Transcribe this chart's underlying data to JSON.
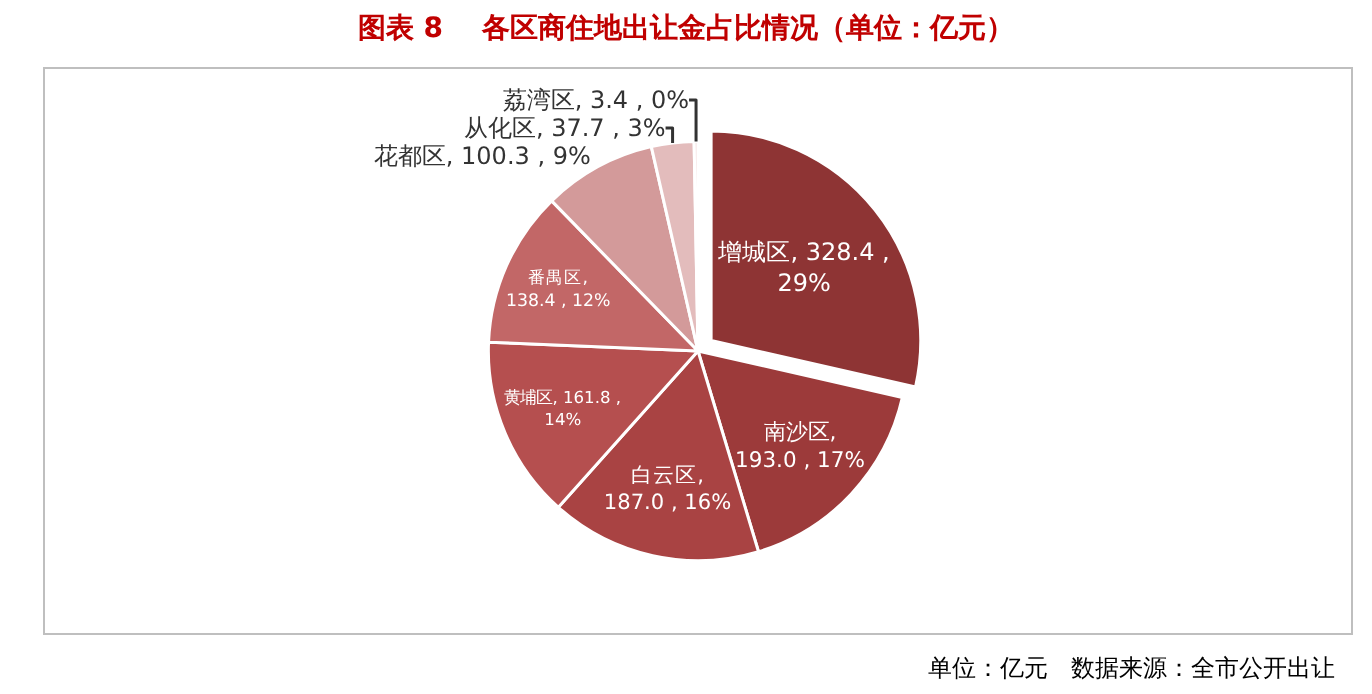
{
  "chart_data": {
    "type": "pie",
    "title": "图表 8    各区商住地出让金占比情况（单位：亿元）",
    "categories": [
      "增城区",
      "南沙区",
      "白云区",
      "黄埔区",
      "番禺区",
      "花都区",
      "从化区",
      "荔湾区"
    ],
    "values": [
      328.4,
      193.0,
      187.0,
      161.8,
      138.4,
      100.3,
      37.7,
      3.4
    ],
    "value_labels": [
      ", 328.4 ,\n29%",
      ",\n193.0 , 17%",
      ",\n187.0 , 16%",
      ", 161.8 ,\n14%",
      ",\n138.4 , 12%",
      ", 100.3 , 9%",
      ", 37.7 , 3%",
      ", 3.4 , 0%"
    ],
    "colors": [
      "#8e3434",
      "#9c3a3a",
      "#a94343",
      "#b54f4f",
      "#c26767",
      "#d39a9a",
      "#e3bcbc",
      "#f2dcdc"
    ],
    "annotations": [
      "单位：亿元   数据来源：全市公开出让"
    ],
    "legend": false
  }
}
